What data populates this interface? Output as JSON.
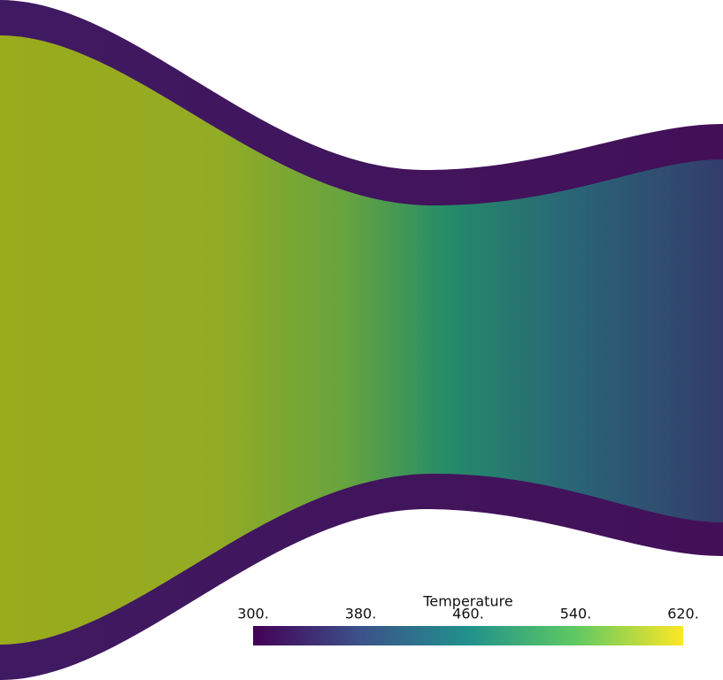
{
  "colorbar": {
    "title": "Temperature",
    "range": [
      300,
      620
    ],
    "ticks": [
      {
        "value": 300,
        "label": "300."
      },
      {
        "value": 380,
        "label": "380."
      },
      {
        "value": 460,
        "label": "460."
      },
      {
        "value": 540,
        "label": "540."
      },
      {
        "value": 620,
        "label": "620."
      }
    ]
  }
}
